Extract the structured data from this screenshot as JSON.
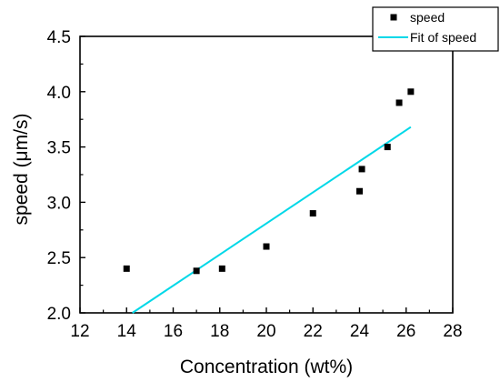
{
  "chart_data": {
    "type": "scatter",
    "title": "",
    "xlabel": "Concentration (wt%)",
    "ylabel": "speed (μm/s)",
    "xlim": [
      12,
      28
    ],
    "ylim": [
      2.0,
      4.5
    ],
    "x_ticks": [
      "12",
      "14",
      "16",
      "18",
      "20",
      "22",
      "24",
      "26",
      "28"
    ],
    "y_ticks": [
      "2.0",
      "2.5",
      "3.0",
      "3.5",
      "4.0",
      "4.5"
    ],
    "grid": false,
    "legend_position": "top-right",
    "series": [
      {
        "name": "speed",
        "type": "scatter",
        "color": "#000000",
        "marker": "square",
        "x": [
          14.0,
          17.0,
          18.1,
          20.0,
          22.0,
          24.0,
          24.1,
          25.2,
          25.7,
          26.2
        ],
        "y": [
          2.4,
          2.38,
          2.4,
          2.6,
          2.9,
          3.1,
          3.3,
          3.5,
          3.9,
          4.0
        ]
      },
      {
        "name": "Fit of speed",
        "type": "line",
        "color": "#00d8e8",
        "x": [
          14.25,
          26.2
        ],
        "y": [
          2.0,
          3.68
        ]
      }
    ]
  }
}
